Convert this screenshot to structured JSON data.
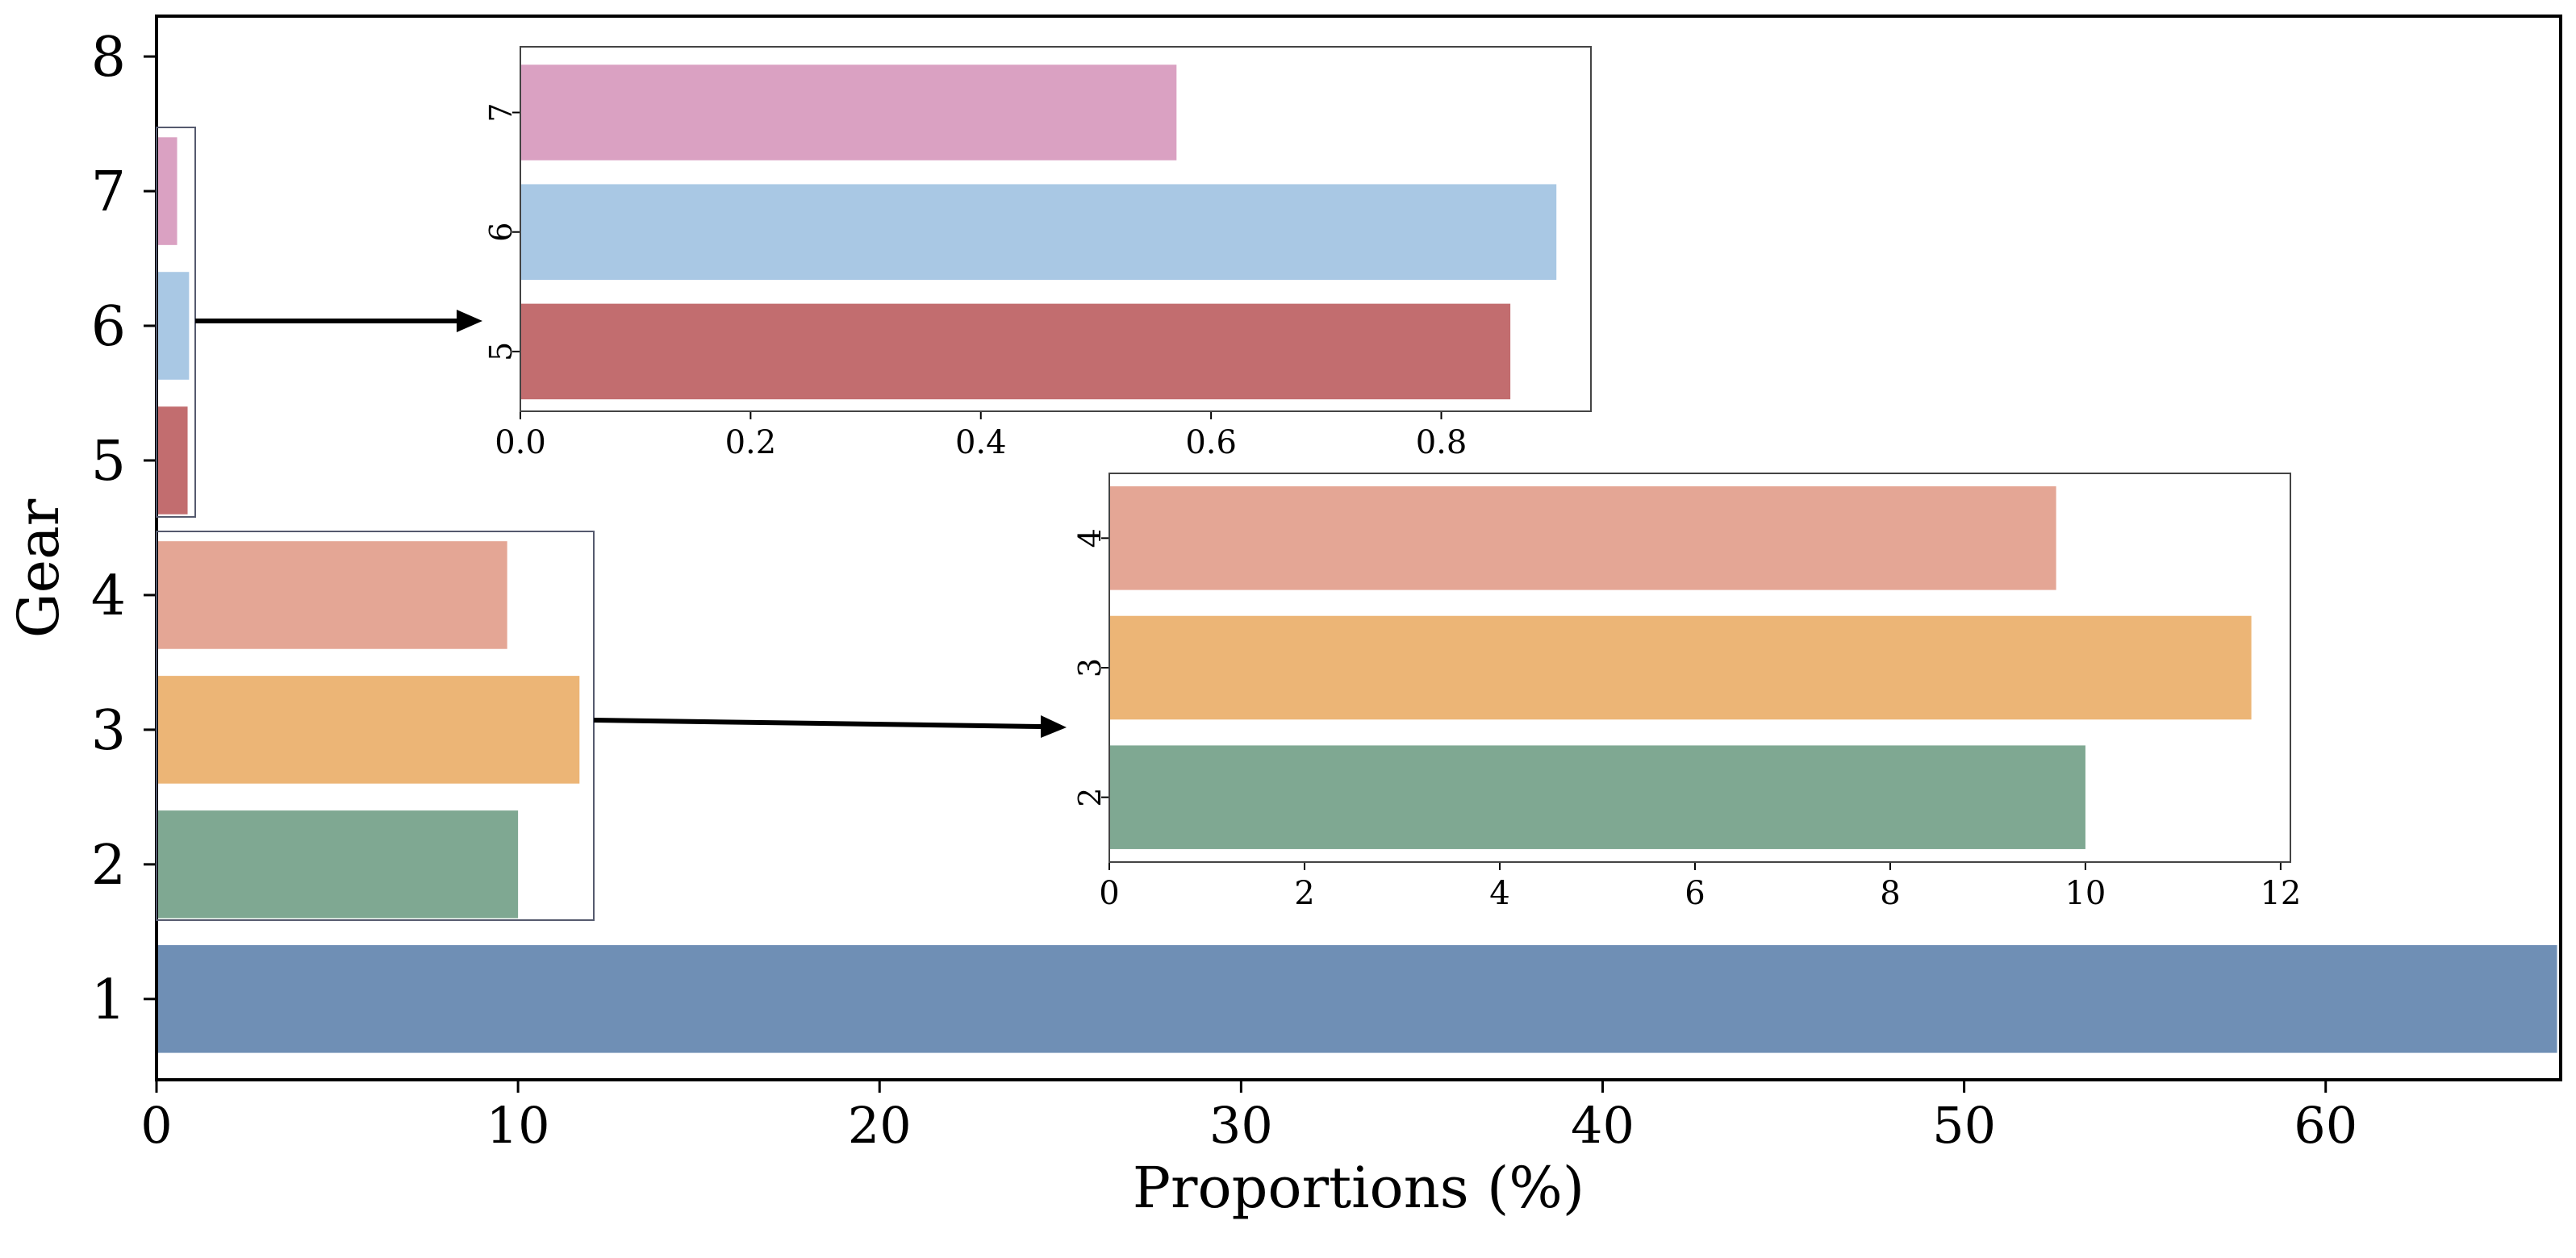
{
  "chart_data": {
    "type": "bar",
    "orientation": "horizontal",
    "title": "",
    "xlabel": "Proportions (%)",
    "ylabel": "Gear",
    "xlim": [
      0,
      66.5
    ],
    "ylim": [
      0.4,
      8.3
    ],
    "xticks": [
      0,
      10,
      20,
      30,
      40,
      50,
      60
    ],
    "yticks": [
      1,
      2,
      3,
      4,
      5,
      6,
      7,
      8
    ],
    "grid": false,
    "legend": "none",
    "categories": [
      "1",
      "2",
      "3",
      "4",
      "5",
      "6",
      "7"
    ],
    "values": [
      66.4,
      10.0,
      11.7,
      9.7,
      0.86,
      0.9,
      0.57
    ],
    "colors": [
      "#6F8FB5",
      "#7FA892",
      "#ECB576",
      "#E4A695",
      "#C26D6F",
      "#A9C8E4",
      "#DAA1C2"
    ],
    "insets": [
      {
        "name": "inset-gears-5-7",
        "categories": [
          "5",
          "6",
          "7"
        ],
        "values": [
          0.86,
          0.9,
          0.57
        ],
        "xlim": [
          0,
          0.93
        ],
        "xticks": [
          0.0,
          0.2,
          0.4,
          0.6,
          0.8
        ],
        "xtick_labels": [
          "0.0",
          "0.2",
          "0.4",
          "0.6",
          "0.8"
        ],
        "colors": [
          "#C26D6F",
          "#A9C8E4",
          "#DAA1C2"
        ]
      },
      {
        "name": "inset-gears-2-4",
        "categories": [
          "2",
          "3",
          "4"
        ],
        "values": [
          10.0,
          11.7,
          9.7
        ],
        "xlim": [
          0,
          12.1
        ],
        "xticks": [
          0,
          2,
          4,
          6,
          8,
          10,
          12
        ],
        "xtick_labels": [
          "0",
          "2",
          "4",
          "6",
          "8",
          "10",
          "12"
        ],
        "colors": [
          "#7FA892",
          "#ECB576",
          "#E4A695"
        ]
      }
    ]
  }
}
